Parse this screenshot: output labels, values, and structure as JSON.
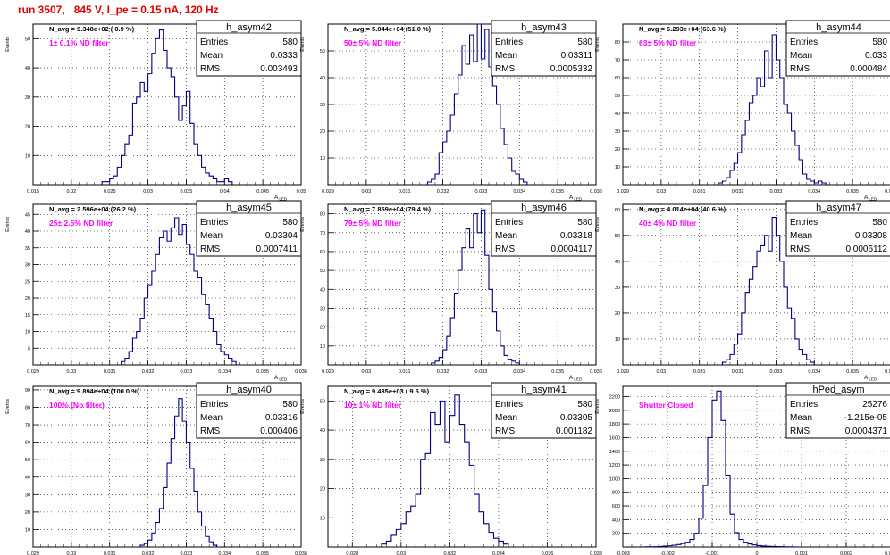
{
  "header": {
    "run_info": "run 3507,   845 V, I_pe = 0.15 nA, 120 Hz"
  },
  "stat_labels": {
    "entries": "Entries",
    "mean": "Mean",
    "rms": "RMS"
  },
  "ylabel": "Events",
  "xlabel_main": "A",
  "xlabel_sub": "LED",
  "colors": {
    "histogram": "#000080",
    "annotation": "#ff00ff",
    "title": "#e00000",
    "grid": "#000000"
  },
  "chart_data": [
    {
      "type": "bar",
      "name": "h_asym42",
      "navg": "N_avg = 9.348e+02 ( 0.9 %)",
      "filter": "1± 0.1% ND filter",
      "entries": "580",
      "mean": "0.0333",
      "rms": "0.003493",
      "xlim": [
        0.015,
        0.05
      ],
      "ylim": [
        0,
        55
      ],
      "xticks": [
        "0.015",
        "0.02",
        "0.025",
        "0.03",
        "0.035",
        "0.04",
        "0.045",
        "0.05"
      ],
      "yticks": [
        10,
        20,
        30,
        40,
        50
      ],
      "bin_start": 0.024,
      "bin_width": 0.0005,
      "values": [
        1,
        1,
        2,
        3,
        6,
        10,
        14,
        17,
        28,
        30,
        35,
        32,
        38,
        45,
        50,
        53,
        46,
        40,
        37,
        30,
        22,
        27,
        32,
        21,
        14,
        10,
        6,
        4,
        3,
        2,
        1,
        1,
        2,
        1
      ]
    },
    {
      "type": "bar",
      "name": "h_asym43",
      "navg": "N_avg = 5.044e+04 (51.0 %)",
      "filter": "50± 5% ND filter",
      "entries": "580",
      "mean": "0.03311",
      "rms": "0.0005332",
      "xlim": [
        0.029,
        0.036
      ],
      "ylim": [
        0,
        60
      ],
      "xticks": [
        "0.029",
        "0.03",
        "0.031",
        "0.032",
        "0.033",
        "0.034",
        "0.035",
        "0.036"
      ],
      "yticks": [
        10,
        20,
        30,
        40,
        50
      ],
      "bin_start": 0.0316,
      "bin_width": 0.0001,
      "values": [
        1,
        2,
        4,
        12,
        16,
        20,
        26,
        34,
        41,
        52,
        45,
        56,
        46,
        60,
        47,
        58,
        44,
        37,
        30,
        21,
        15,
        10,
        5,
        4,
        2,
        1
      ]
    },
    {
      "type": "bar",
      "name": "h_asym44",
      "navg": "N_avg = 6.293e+04 (63.6 %)",
      "filter": "63± 5% ND filter",
      "entries": "580",
      "mean": "0.033",
      "rms": "0.000484",
      "xlim": [
        0.029,
        0.036
      ],
      "ylim": [
        0,
        90
      ],
      "xticks": [
        "0.029",
        "0.03",
        "0.031",
        "0.032",
        "0.033",
        "0.034",
        "0.035",
        "0.036"
      ],
      "yticks": [
        10,
        20,
        30,
        40,
        50,
        60,
        70,
        80
      ],
      "bin_start": 0.0315,
      "bin_width": 0.0001,
      "values": [
        1,
        2,
        4,
        8,
        12,
        18,
        28,
        36,
        46,
        50,
        60,
        55,
        75,
        60,
        84,
        70,
        60,
        45,
        40,
        30,
        22,
        14,
        6,
        3,
        2,
        1,
        2,
        1
      ]
    },
    {
      "type": "bar",
      "name": "h_asym45",
      "navg": "N_avg = 2.596e+04 (26.2 %)",
      "filter": "25± 2.5% ND filter",
      "entries": "580",
      "mean": "0.03304",
      "rms": "0.0007411",
      "xlim": [
        0.029,
        0.036
      ],
      "ylim": [
        0,
        48
      ],
      "xticks": [
        "0.029",
        "0.03",
        "0.031",
        "0.032",
        "0.033",
        "0.034",
        "0.035",
        "0.036"
      ],
      "yticks": [
        5,
        10,
        15,
        20,
        25,
        30,
        35,
        40,
        45
      ],
      "bin_start": 0.0313,
      "bin_width": 0.0001,
      "values": [
        1,
        2,
        4,
        8,
        10,
        14,
        20,
        24,
        28,
        33,
        38,
        40,
        37,
        41,
        44,
        39,
        42,
        36,
        33,
        28,
        26,
        21,
        18,
        14,
        10,
        6,
        4,
        3,
        2,
        1
      ]
    },
    {
      "type": "bar",
      "name": "h_asym46",
      "navg": "N_avg = 7.859e+04 (79.4 %)",
      "filter": "79± 5% ND filter",
      "entries": "580",
      "mean": "0.03318",
      "rms": "0.0004117",
      "xlim": [
        0.029,
        0.036
      ],
      "ylim": [
        0,
        85
      ],
      "xticks": [
        "0.029",
        "0.03",
        "0.031",
        "0.032",
        "0.033",
        "0.034",
        "0.035",
        "0.036"
      ],
      "yticks": [
        10,
        20,
        30,
        40,
        50,
        60,
        70,
        80
      ],
      "bin_start": 0.0317,
      "bin_width": 0.0001,
      "values": [
        1,
        2,
        4,
        8,
        15,
        25,
        38,
        50,
        62,
        72,
        62,
        80,
        70,
        82,
        58,
        40,
        28,
        18,
        10,
        5,
        3,
        2,
        1
      ]
    },
    {
      "type": "bar",
      "name": "h_asym47",
      "navg": "N_avg = 4.014e+04 (40.6 %)",
      "filter": "40± 4% ND filter",
      "entries": "580",
      "mean": "0.03308",
      "rms": "0.0006112",
      "xlim": [
        0.029,
        0.036
      ],
      "ylim": [
        0,
        62
      ],
      "xticks": [
        "0.029",
        "0.03",
        "0.031",
        "0.032",
        "0.033",
        "0.034",
        "0.035",
        "0.036"
      ],
      "yticks": [
        10,
        20,
        30,
        40,
        50,
        60
      ],
      "bin_start": 0.0316,
      "bin_width": 0.0001,
      "values": [
        1,
        2,
        4,
        8,
        12,
        20,
        28,
        33,
        38,
        44,
        46,
        50,
        44,
        57,
        50,
        40,
        30,
        22,
        18,
        10,
        6,
        4,
        2,
        1
      ]
    },
    {
      "type": "bar",
      "name": "h_asym40",
      "navg": "N_avg = 9.894e+04 (100.0 %)",
      "filter": "100% (No filter)",
      "entries": "580",
      "mean": "0.03316",
      "rms": "0.000406",
      "xlim": [
        0.029,
        0.036
      ],
      "ylim": [
        0,
        92
      ],
      "xticks": [
        "0.029",
        "0.03",
        "0.031",
        "0.032",
        "0.033",
        "0.034",
        "0.035",
        "0.036"
      ],
      "yticks": [
        10,
        20,
        30,
        40,
        50,
        60,
        70,
        80,
        90
      ],
      "bin_start": 0.0318,
      "bin_width": 0.0001,
      "values": [
        1,
        2,
        4,
        8,
        14,
        22,
        34,
        48,
        62,
        75,
        85,
        72,
        60,
        45,
        32,
        20,
        12,
        6,
        3,
        1
      ]
    },
    {
      "type": "bar",
      "name": "h_asym41",
      "navg": "N_avg = 9.435e+03 ( 9.5 %)",
      "filter": "10± 1% ND filter",
      "entries": "580",
      "mean": "0.03305",
      "rms": "0.001182",
      "xlim": [
        0.027,
        0.038
      ],
      "ylim": [
        0,
        55
      ],
      "xticks": [
        "0.028",
        "0.03",
        "0.032",
        "0.034",
        "0.036",
        "0.038"
      ],
      "yticks": [
        10,
        20,
        30,
        40,
        50
      ],
      "bin_start": 0.0292,
      "bin_width": 0.0002,
      "values": [
        1,
        2,
        4,
        6,
        8,
        12,
        14,
        18,
        30,
        32,
        46,
        42,
        50,
        36,
        45,
        52,
        42,
        36,
        28,
        18,
        12,
        8,
        5,
        3,
        2,
        1
      ]
    },
    {
      "type": "bar",
      "name": "hPed_asym",
      "navg": "",
      "filter": "Shutter Closed",
      "entries": "25276",
      "mean": "-1.215e-05",
      "rms": "0.0004371",
      "xlim": [
        -0.003,
        0.003
      ],
      "ylim": [
        0,
        2350
      ],
      "xticks": [
        "-0.003",
        "-0.002",
        "-0.001",
        "0",
        "0.001",
        "0.002",
        "0.003"
      ],
      "yticks": [
        200,
        400,
        600,
        800,
        1000,
        1200,
        1400,
        1600,
        1800,
        2000,
        2200
      ],
      "bin_start": -0.0025,
      "bin_width": 0.0001,
      "values": [
        2,
        3,
        5,
        8,
        12,
        18,
        25,
        35,
        50,
        70,
        110,
        200,
        420,
        900,
        1600,
        2150,
        2280,
        1850,
        1050,
        480,
        210,
        110,
        70,
        45,
        30,
        20,
        14,
        10,
        8,
        6,
        4,
        3,
        2,
        1
      ]
    }
  ]
}
